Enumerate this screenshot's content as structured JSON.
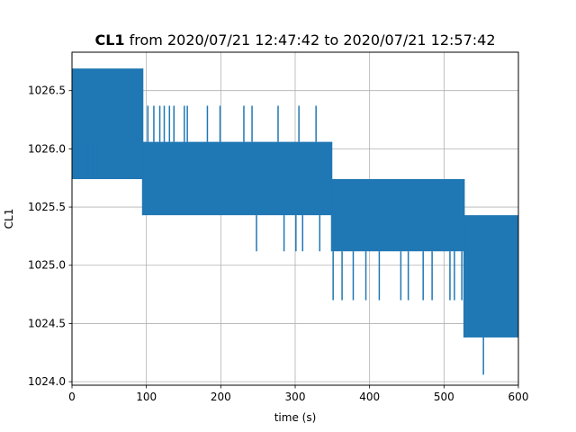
{
  "chart_data": {
    "type": "line",
    "title_bold": "CL1",
    "title_rest": " from 2020/07/21 12:47:42 to 2020/07/21 12:57:42",
    "xlabel": "time (s)",
    "ylabel": "CL1",
    "xlim": [
      0,
      600
    ],
    "ylim": [
      1023.97,
      1026.83
    ],
    "xticks": [
      0,
      100,
      200,
      300,
      400,
      500,
      600
    ],
    "xtick_labels": [
      "0",
      "100",
      "200",
      "300",
      "400",
      "500",
      "600"
    ],
    "yticks": [
      1024.0,
      1024.5,
      1025.0,
      1025.5,
      1026.0,
      1026.5
    ],
    "ytick_labels": [
      "1024.0",
      "1024.5",
      "1025.0",
      "1025.5",
      "1026.0",
      "1026.5"
    ],
    "grid": true,
    "series": [
      {
        "color": "#1f77b4",
        "segments": [
          {
            "x_start": 0,
            "x_end": 95,
            "low": 1025.74,
            "high": 1026.69
          },
          {
            "x_start": 95,
            "x_end": 349,
            "low": 1025.43,
            "high": 1026.06
          },
          {
            "x_start": 349,
            "x_end": 527,
            "low": 1025.12,
            "high": 1025.74
          },
          {
            "x_start": 527,
            "x_end": 600,
            "low": 1024.38,
            "high": 1025.43
          }
        ],
        "spikes": [
          {
            "x": 3,
            "y": 1026.06
          },
          {
            "x": 8,
            "y": 1026.06
          },
          {
            "x": 16,
            "y": 1026.06
          },
          {
            "x": 22,
            "y": 1026.06
          },
          {
            "x": 28,
            "y": 1026.06
          },
          {
            "x": 34,
            "y": 1026.06
          },
          {
            "x": 48,
            "y": 1025.74
          },
          {
            "x": 55,
            "y": 1025.74
          },
          {
            "x": 62,
            "y": 1025.74
          },
          {
            "x": 70,
            "y": 1025.74
          },
          {
            "x": 78,
            "y": 1025.74
          },
          {
            "x": 86,
            "y": 1025.74
          },
          {
            "x": 102,
            "y": 1026.37
          },
          {
            "x": 110,
            "y": 1026.37
          },
          {
            "x": 118,
            "y": 1026.37
          },
          {
            "x": 124,
            "y": 1026.37
          },
          {
            "x": 131,
            "y": 1026.37
          },
          {
            "x": 137,
            "y": 1026.37
          },
          {
            "x": 151,
            "y": 1026.37
          },
          {
            "x": 155,
            "y": 1026.37
          },
          {
            "x": 182,
            "y": 1026.37
          },
          {
            "x": 199,
            "y": 1026.37
          },
          {
            "x": 231,
            "y": 1026.37
          },
          {
            "x": 242,
            "y": 1026.37
          },
          {
            "x": 277,
            "y": 1026.37
          },
          {
            "x": 305,
            "y": 1026.37
          },
          {
            "x": 328,
            "y": 1026.37
          },
          {
            "x": 248,
            "y": 1025.12
          },
          {
            "x": 285,
            "y": 1025.12
          },
          {
            "x": 301,
            "y": 1025.12
          },
          {
            "x": 310,
            "y": 1025.12
          },
          {
            "x": 333,
            "y": 1025.12
          },
          {
            "x": 351,
            "y": 1024.7
          },
          {
            "x": 363,
            "y": 1024.7
          },
          {
            "x": 378,
            "y": 1024.7
          },
          {
            "x": 395,
            "y": 1024.7
          },
          {
            "x": 413,
            "y": 1024.7
          },
          {
            "x": 442,
            "y": 1024.7
          },
          {
            "x": 452,
            "y": 1024.7
          },
          {
            "x": 472,
            "y": 1024.7
          },
          {
            "x": 484,
            "y": 1024.7
          },
          {
            "x": 508,
            "y": 1024.7
          },
          {
            "x": 514,
            "y": 1024.7
          },
          {
            "x": 524,
            "y": 1024.7
          },
          {
            "x": 553,
            "y": 1024.06
          }
        ]
      }
    ]
  }
}
